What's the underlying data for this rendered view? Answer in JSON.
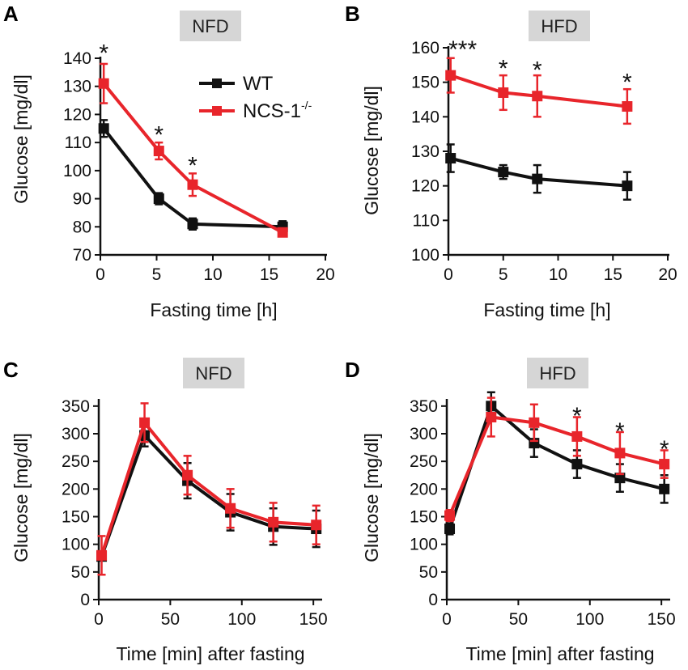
{
  "figure": {
    "series_meta": [
      {
        "key": "wt",
        "name": "WT",
        "color": "#111111"
      },
      {
        "key": "ko",
        "name": "NCS-1",
        "superscript": "-/-",
        "color": "#e8252b"
      }
    ],
    "colors": {
      "axis": "#111111",
      "condition_box": "#d6d6d6"
    }
  },
  "legend": {
    "wt_label": "WT",
    "ko_label": "NCS-1",
    "ko_sup": "-/-"
  },
  "chart_data": [
    {
      "panel": "A",
      "condition": "NFD",
      "type": "line",
      "xlabel": "Fasting time [h]",
      "ylabel": "Glucose [mg/dl]",
      "xlim": [
        0,
        20
      ],
      "ylim": [
        70,
        140
      ],
      "xticks": [
        0,
        5,
        10,
        15,
        20
      ],
      "yticks": [
        70,
        80,
        90,
        100,
        110,
        120,
        130,
        140
      ],
      "x": [
        0.3,
        5.2,
        8.2,
        16.2
      ],
      "series": [
        {
          "name": "WT",
          "values": [
            115,
            90,
            81,
            80
          ],
          "errors": [
            3,
            2,
            2,
            2
          ]
        },
        {
          "name": "NCS-1-/-",
          "values": [
            131,
            107,
            95,
            78
          ],
          "errors": [
            7,
            3,
            4,
            1
          ]
        }
      ],
      "annotations": [
        {
          "x": 0.3,
          "y": 143,
          "text": "*"
        },
        {
          "x": 5.2,
          "y": 114,
          "text": "*"
        },
        {
          "x": 8.2,
          "y": 103,
          "text": "*"
        }
      ]
    },
    {
      "panel": "B",
      "condition": "HFD",
      "type": "line",
      "xlabel": "Fasting time [h]",
      "ylabel": "Glucose [mg/dl]",
      "xlim": [
        0,
        20
      ],
      "ylim": [
        100,
        160
      ],
      "xticks": [
        0,
        5,
        10,
        15,
        20
      ],
      "yticks": [
        100,
        110,
        120,
        130,
        140,
        150,
        160
      ],
      "x": [
        0.2,
        5.0,
        8.1,
        16.3
      ],
      "series": [
        {
          "name": "WT",
          "values": [
            128,
            124,
            122,
            120
          ],
          "errors": [
            4,
            2,
            4,
            4
          ]
        },
        {
          "name": "NCS-1-/-",
          "values": [
            152,
            147,
            146,
            143
          ],
          "errors": [
            5,
            5,
            6,
            5
          ]
        }
      ],
      "annotations": [
        {
          "x": 1.3,
          "y": 160.5,
          "text": "***"
        },
        {
          "x": 5.0,
          "y": 155,
          "text": "*"
        },
        {
          "x": 8.1,
          "y": 154.5,
          "text": "*"
        },
        {
          "x": 16.3,
          "y": 151,
          "text": "*"
        }
      ]
    },
    {
      "panel": "C",
      "condition": "NFD",
      "type": "line",
      "xlabel": "Time [min] after fasting",
      "ylabel": "Glucose [mg/dl]",
      "xlim": [
        0,
        155
      ],
      "ylim": [
        0,
        360
      ],
      "xticks": [
        0,
        50,
        100,
        150
      ],
      "yticks": [
        0,
        50,
        100,
        150,
        200,
        250,
        300,
        350
      ],
      "x": [
        2,
        32,
        62,
        92,
        122,
        152
      ],
      "series": [
        {
          "name": "WT",
          "values": [
            78,
            297,
            215,
            158,
            132,
            128
          ],
          "errors": [
            5,
            20,
            32,
            33,
            33,
            33
          ]
        },
        {
          "name": "NCS-1-/-",
          "values": [
            80,
            320,
            225,
            165,
            140,
            135
          ],
          "errors": [
            35,
            35,
            35,
            35,
            35,
            35
          ]
        }
      ],
      "annotations": []
    },
    {
      "panel": "D",
      "condition": "HFD",
      "type": "line",
      "xlabel": "Time [min] after fasting",
      "ylabel": "Glucose [mg/dl]",
      "xlim": [
        0,
        155
      ],
      "ylim": [
        0,
        360
      ],
      "xticks": [
        0,
        50,
        100,
        150
      ],
      "yticks": [
        0,
        50,
        100,
        150,
        200,
        250,
        300,
        350
      ],
      "x": [
        2,
        31,
        61,
        91,
        121,
        152
      ],
      "series": [
        {
          "name": "WT",
          "values": [
            128,
            350,
            283,
            245,
            220,
            200
          ],
          "errors": [
            10,
            25,
            25,
            25,
            25,
            25
          ]
        },
        {
          "name": "NCS-1-/-",
          "values": [
            152,
            330,
            320,
            295,
            265,
            245
          ],
          "errors": [
            10,
            35,
            33,
            35,
            38,
            25
          ]
        }
      ],
      "annotations": [
        {
          "x": 91,
          "y": 338,
          "text": "*"
        },
        {
          "x": 121,
          "y": 310,
          "text": "*"
        },
        {
          "x": 152,
          "y": 278,
          "text": "*"
        }
      ]
    }
  ]
}
